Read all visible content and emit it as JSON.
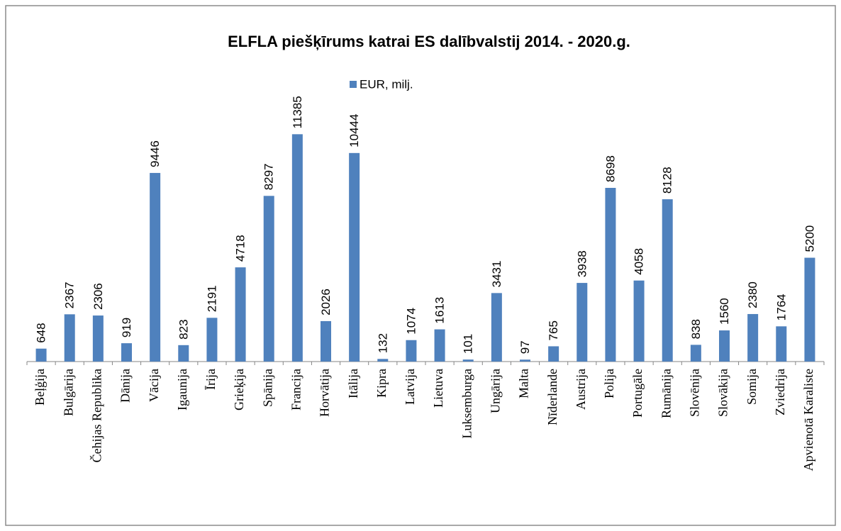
{
  "chart_data": {
    "type": "bar",
    "title": "ELFLA piešķīrums katrai ES dalībvalstij 2014. - 2020.g.",
    "categories": [
      "Beļģija",
      "Bulgārija",
      "Čehijas Republika",
      "Dānija",
      "Vācija",
      "Igaunija",
      "Īrija",
      "Grieķija",
      "Spānija",
      "Francija",
      "Horvātija",
      "Itālija",
      "Kipra",
      "Latvija",
      "Lietuva",
      "Luksemburga",
      "Ungārija",
      "Malta",
      "Nīderlande",
      "Austrija",
      "Polija",
      "Portugāle",
      "Rumānija",
      "Slovēnija",
      "Slovākija",
      "Somija",
      "Zviedrija",
      "Apvienotā Karaliste"
    ],
    "series": [
      {
        "name": "EUR, milj.",
        "color": "#4f81bd",
        "values": [
          648,
          2367,
          2306,
          919,
          9446,
          823,
          2191,
          4718,
          8297,
          11385,
          2026,
          10444,
          132,
          1074,
          1613,
          101,
          3431,
          97,
          765,
          3938,
          8698,
          4058,
          8128,
          838,
          1560,
          2380,
          1764,
          5200
        ]
      }
    ],
    "ylim": [
      0,
      12000
    ]
  }
}
